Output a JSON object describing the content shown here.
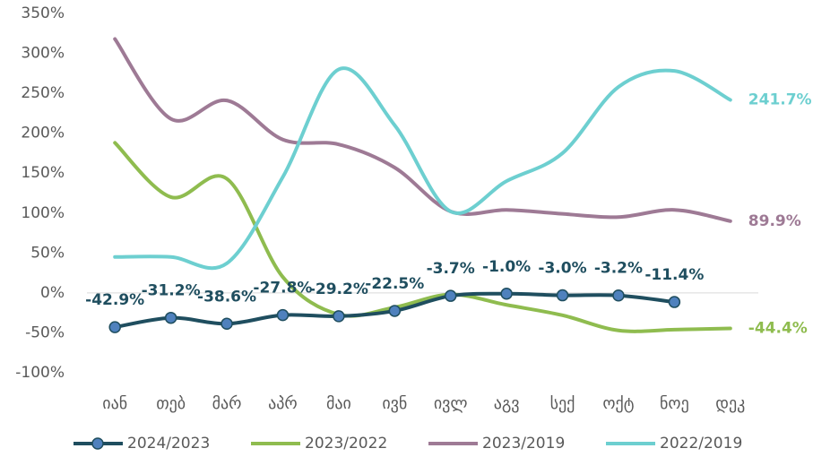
{
  "chart_data": {
    "type": "line",
    "categories": [
      "იან",
      "თებ",
      "მარ",
      "აპრ",
      "მაი",
      "ივნ",
      "ივლ",
      "აგვ",
      "სექ",
      "ოქტ",
      "ნოე",
      "დეკ"
    ],
    "series": [
      {
        "name": "2024/2023",
        "color": "#1f4e5f",
        "marker_color": "#4f81bd",
        "values": [
          -42.9,
          -31.2,
          -38.6,
          -27.8,
          -29.2,
          -22.5,
          -3.7,
          -1.0,
          -3.0,
          -3.2,
          -11.4,
          null
        ],
        "value_labels": [
          "-42.9%",
          "-31.2%",
          "-38.6%",
          "-27.8%",
          "-29.2%",
          "-22.5%",
          "-3.7%",
          "-1.0%",
          "-3.0%",
          "-3.2%",
          "-11.4%",
          null
        ]
      },
      {
        "name": "2023/2022",
        "color": "#8fbc4f",
        "values": [
          188,
          120,
          143,
          20,
          -27,
          -18,
          -2,
          -15,
          -28,
          -47,
          -46,
          -44.4
        ],
        "value_labels": [
          null,
          null,
          null,
          null,
          null,
          null,
          null,
          null,
          null,
          null,
          null,
          "-44.4%"
        ]
      },
      {
        "name": "2023/2019",
        "color": "#9e7a95",
        "values": [
          318,
          218,
          241,
          192,
          186,
          157,
          102,
          104,
          99,
          95,
          104,
          89.9
        ],
        "value_labels": [
          null,
          null,
          null,
          null,
          null,
          null,
          null,
          null,
          null,
          null,
          null,
          "89.9%"
        ]
      },
      {
        "name": "2022/2019",
        "color": "#6dcfd0",
        "values": [
          45,
          45,
          37,
          145,
          280,
          210,
          102,
          140,
          175,
          258,
          278,
          241.7
        ],
        "value_labels": [
          null,
          null,
          null,
          null,
          null,
          null,
          null,
          null,
          null,
          null,
          null,
          "241.7%"
        ]
      }
    ],
    "ylim": [
      -100,
      350
    ],
    "yticks": [
      {
        "value": -100,
        "label": "-100%"
      },
      {
        "value": -50,
        "label": "-50%"
      },
      {
        "value": 0,
        "label": "0%"
      },
      {
        "value": 50,
        "label": "50%"
      },
      {
        "value": 100,
        "label": "100%"
      },
      {
        "value": 150,
        "label": "150%"
      },
      {
        "value": 200,
        "label": "200%"
      },
      {
        "value": 250,
        "label": "250%"
      },
      {
        "value": 300,
        "label": "300%"
      },
      {
        "value": 350,
        "label": "350%"
      }
    ],
    "legend": "bottom"
  }
}
